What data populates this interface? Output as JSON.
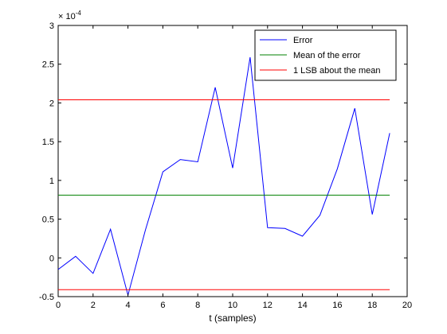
{
  "chart_data": {
    "type": "line",
    "xlabel": "t (samples)",
    "ylabel": "",
    "xlim": [
      0,
      20
    ],
    "ylim": [
      -0.5,
      3
    ],
    "y_exponent_label": "× 10",
    "y_exponent_power": "-4",
    "xticks": [
      "0",
      "2",
      "4",
      "6",
      "8",
      "10",
      "12",
      "14",
      "16",
      "18",
      "20"
    ],
    "yticks": [
      "-0.5",
      "0",
      "0.5",
      "1",
      "1.5",
      "2",
      "2.5",
      "3"
    ],
    "grid": false,
    "legend_position": "top-right",
    "series": [
      {
        "name": "Error",
        "color": "#0000ff",
        "x": [
          0,
          1,
          2,
          3,
          4,
          5,
          6,
          7,
          8,
          9,
          10,
          11,
          12,
          13,
          14,
          15,
          16,
          17,
          18,
          19
        ],
        "y": [
          -0.15,
          0.02,
          -0.2,
          0.37,
          -0.48,
          0.36,
          1.11,
          1.27,
          1.24,
          2.2,
          1.16,
          2.59,
          0.39,
          0.38,
          0.28,
          0.55,
          1.15,
          1.93,
          0.56,
          1.61
        ]
      },
      {
        "name": "Mean of the error",
        "color": "#008000",
        "x": [
          0,
          19
        ],
        "y": [
          0.81,
          0.81
        ]
      },
      {
        "name": "1 LSB about the mean",
        "color": "#ff0000",
        "x": [
          0,
          19
        ],
        "y": [
          2.04,
          2.04
        ]
      },
      {
        "name": "",
        "color": "#ff0000",
        "x": [
          0,
          19
        ],
        "y": [
          -0.41,
          -0.41
        ]
      }
    ]
  }
}
